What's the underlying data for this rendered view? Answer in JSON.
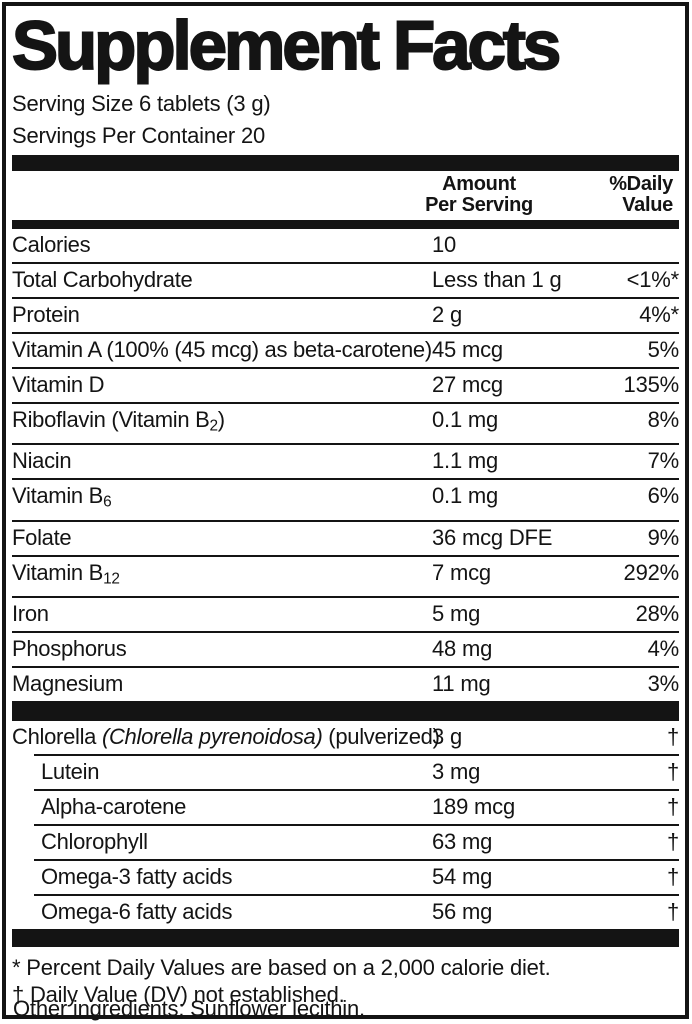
{
  "title": "Supplement Facts",
  "serving_info": {
    "size": "Serving Size 6 tablets (3 g)",
    "per_container": "Servings Per Container 20"
  },
  "columns": {
    "amount_line1": "Amount",
    "amount_line2": "Per Serving",
    "dv_line1": "%Daily",
    "dv_line2": "Value"
  },
  "table": {
    "main_rows": [
      {
        "name": "Calories",
        "amount": "10",
        "dv": ""
      },
      {
        "name": "Total Carbohydrate",
        "amount": "Less than 1 g",
        "dv": "<1%*"
      },
      {
        "name": "Protein",
        "amount": "2 g",
        "dv": "4%*"
      },
      {
        "name": "Vitamin A (100% (45 mcg) as beta-carotene)",
        "amount": "45 mcg",
        "dv": "5%"
      },
      {
        "name": "Vitamin D",
        "amount": "27 mcg",
        "dv": "135%"
      },
      {
        "name_parts": [
          {
            "t": "Riboflavin (Vitamin B"
          },
          {
            "t": "2",
            "s": true
          },
          {
            "t": ")"
          }
        ],
        "amount": "0.1 mg",
        "dv": "8%"
      },
      {
        "name": "Niacin",
        "amount": "1.1 mg",
        "dv": "7%"
      },
      {
        "name_parts": [
          {
            "t": "Vitamin B"
          },
          {
            "t": "6",
            "s": true
          }
        ],
        "amount": "0.1 mg",
        "dv": "6%"
      },
      {
        "name": "Folate",
        "amount": "36 mcg DFE",
        "dv": "9%"
      },
      {
        "name_parts": [
          {
            "t": "Vitamin B"
          },
          {
            "t": "12",
            "s": true
          }
        ],
        "amount": "7 mcg",
        "dv": "292%"
      },
      {
        "name": "Iron",
        "amount": "5 mg",
        "dv": "28%"
      },
      {
        "name": "Phosphorus",
        "amount": "48 mg",
        "dv": "4%"
      },
      {
        "name": "Magnesium",
        "amount": "11 mg",
        "dv": "3%"
      }
    ],
    "botanical_rows": [
      {
        "name_parts": [
          {
            "t": "Chlorella "
          },
          {
            "t": "(Chlorella pyrenoidosa)",
            "i": true
          },
          {
            "t": " (pulverized)"
          }
        ],
        "amount": "3 g",
        "dv": "†"
      },
      {
        "name": "Lutein",
        "amount": "3 mg",
        "dv": "†",
        "indent": true
      },
      {
        "name": "Alpha-carotene",
        "amount": "189 mcg",
        "dv": "†",
        "indent": true
      },
      {
        "name": "Chlorophyll",
        "amount": "63 mg",
        "dv": "†",
        "indent": true
      },
      {
        "name": "Omega-3 fatty acids",
        "amount": "54 mg",
        "dv": "†",
        "indent": true
      },
      {
        "name": "Omega-6 fatty acids",
        "amount": "56 mg",
        "dv": "†",
        "indent": true
      }
    ]
  },
  "footnotes": {
    "asterisk": "* Percent Daily Values are based on a 2,000 calorie diet.",
    "dagger": "† Daily Value (DV) not established."
  },
  "other_ingredients": "Other ingredients: Sunflower lecithin.",
  "colors": {
    "ink": "#141414",
    "background": "#ffffff"
  }
}
